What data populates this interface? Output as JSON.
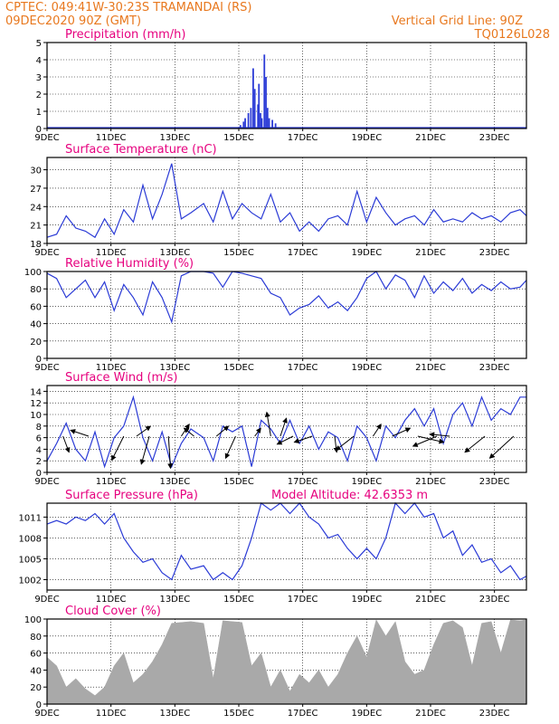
{
  "header": {
    "line1_left": "CPTEC:   049:41W-30:23S   TRAMANDAI (RS)",
    "line2_left": "09DEC2020 90Z (GMT)",
    "line1_right": "Vertical Grid Line: 90Z",
    "line2_right": "TQ0126L028"
  },
  "colors": {
    "header": "#e8781e",
    "title": "#e6007e",
    "series": "#2b3bd6",
    "cloud": "#a9a9a9",
    "arrow": "#000000"
  },
  "x_tick_labels": [
    "9DEC",
    "11DEC",
    "13DEC",
    "15DEC",
    "17DEC",
    "19DEC",
    "21DEC",
    "23DEC"
  ],
  "chart_data": [
    {
      "id": "precip",
      "type": "bar",
      "title": "Precipitation (mm/h)",
      "ylim": [
        0,
        5
      ],
      "yticks": [
        "0",
        "1",
        "2",
        "3",
        "4",
        "5"
      ],
      "x_range_days": [
        0,
        15
      ],
      "x": [
        6.05,
        6.15,
        6.2,
        6.3,
        6.38,
        6.45,
        6.5,
        6.6,
        6.63,
        6.68,
        6.72,
        6.8,
        6.85,
        6.9,
        6.95,
        7.05,
        7.15
      ],
      "values": [
        0.2,
        0.4,
        0.6,
        0.9,
        1.2,
        3.5,
        2.3,
        1.4,
        2.6,
        0.9,
        0.6,
        4.3,
        3.0,
        1.2,
        0.6,
        0.5,
        0.3
      ]
    },
    {
      "id": "temp",
      "type": "line",
      "title": "Surface Temperature (nC)",
      "ylim": [
        18,
        32
      ],
      "yticks": [
        "18",
        "21",
        "24",
        "27",
        "30"
      ],
      "x": [
        0,
        0.3,
        0.6,
        0.9,
        1.2,
        1.5,
        1.8,
        2.1,
        2.4,
        2.7,
        3.0,
        3.3,
        3.6,
        3.9,
        4.2,
        4.5,
        4.9,
        5.2,
        5.5,
        5.8,
        6.1,
        6.4,
        6.7,
        7.0,
        7.3,
        7.6,
        7.9,
        8.2,
        8.5,
        8.8,
        9.1,
        9.4,
        9.7,
        10.0,
        10.3,
        10.6,
        10.9,
        11.2,
        11.5,
        11.8,
        12.1,
        12.4,
        12.7,
        13.0,
        13.3,
        13.6,
        13.9,
        14.2,
        14.5,
        14.8,
        15.0
      ],
      "values": [
        19,
        19.5,
        22.5,
        20.5,
        20,
        19,
        22,
        19.5,
        23.5,
        21.5,
        27.5,
        22,
        26,
        31,
        22,
        23,
        24.5,
        21.5,
        26.5,
        22,
        24.5,
        23,
        22,
        26,
        21.5,
        23,
        20,
        21.5,
        20,
        22,
        22.5,
        21,
        26.5,
        21.5,
        25.5,
        23,
        21,
        22,
        22.5,
        21,
        23.5,
        21.5,
        22,
        21.5,
        23,
        22,
        22.5,
        21.5,
        23,
        23.5,
        22.5
      ]
    },
    {
      "id": "rh",
      "type": "line",
      "title": "Relative Humidity (%)",
      "ylim": [
        0,
        100
      ],
      "yticks": [
        "0",
        "20",
        "40",
        "60",
        "80",
        "100"
      ],
      "x": [
        0,
        0.3,
        0.6,
        0.9,
        1.2,
        1.5,
        1.8,
        2.1,
        2.4,
        2.7,
        3.0,
        3.3,
        3.6,
        3.9,
        4.2,
        4.5,
        4.9,
        5.2,
        5.5,
        5.8,
        6.1,
        6.4,
        6.7,
        7.0,
        7.3,
        7.6,
        7.9,
        8.2,
        8.5,
        8.8,
        9.1,
        9.4,
        9.7,
        10.0,
        10.3,
        10.6,
        10.9,
        11.2,
        11.5,
        11.8,
        12.1,
        12.4,
        12.7,
        13.0,
        13.3,
        13.6,
        13.9,
        14.2,
        14.5,
        14.8,
        15.0
      ],
      "values": [
        98,
        92,
        70,
        80,
        90,
        70,
        88,
        55,
        85,
        70,
        50,
        88,
        70,
        42,
        95,
        100,
        100,
        98,
        82,
        100,
        98,
        95,
        92,
        75,
        70,
        50,
        58,
        62,
        72,
        58,
        65,
        55,
        70,
        92,
        100,
        80,
        96,
        90,
        70,
        95,
        75,
        88,
        78,
        92,
        75,
        85,
        78,
        88,
        80,
        82,
        90
      ]
    },
    {
      "id": "wind",
      "type": "line",
      "title": "Surface Wind (m/s)",
      "ylim": [
        0,
        15
      ],
      "yticks": [
        "0",
        "2",
        "4",
        "6",
        "8",
        "10",
        "12",
        "14"
      ],
      "x": [
        0,
        0.3,
        0.6,
        0.9,
        1.2,
        1.5,
        1.8,
        2.1,
        2.4,
        2.7,
        3.0,
        3.3,
        3.6,
        3.9,
        4.2,
        4.5,
        4.9,
        5.2,
        5.5,
        5.8,
        6.1,
        6.4,
        6.7,
        7.0,
        7.3,
        7.6,
        7.9,
        8.2,
        8.5,
        8.8,
        9.1,
        9.4,
        9.7,
        10.0,
        10.3,
        10.6,
        10.9,
        11.2,
        11.5,
        11.8,
        12.1,
        12.4,
        12.7,
        13.0,
        13.3,
        13.6,
        13.9,
        14.2,
        14.5,
        14.8,
        15.0
      ],
      "values": [
        2,
        5,
        8.5,
        4,
        2,
        7,
        1,
        6,
        8,
        13,
        6,
        2,
        7,
        1,
        5,
        7.5,
        6,
        2,
        8,
        7,
        8,
        1,
        9,
        7.5,
        5,
        9,
        5,
        8,
        4,
        7,
        6,
        2,
        8,
        6,
        2,
        8,
        6,
        9,
        11,
        8,
        11,
        5,
        10,
        12,
        8,
        13,
        9,
        11,
        10,
        13,
        13
      ],
      "arrows": [
        {
          "x": 0.5,
          "u": 0.3,
          "v": -0.8
        },
        {
          "x": 1.3,
          "u": -0.9,
          "v": 0.3
        },
        {
          "x": 2.4,
          "u": -0.6,
          "v": -1.2
        },
        {
          "x": 2.8,
          "u": 0.7,
          "v": 0.5
        },
        {
          "x": 3.2,
          "u": -0.4,
          "v": -1.4
        },
        {
          "x": 3.8,
          "u": 0.1,
          "v": -1.6
        },
        {
          "x": 4.2,
          "u": 0.4,
          "v": 0.6
        },
        {
          "x": 4.6,
          "u": -0.5,
          "v": 0.4
        },
        {
          "x": 5.3,
          "u": 0.6,
          "v": 0.5
        },
        {
          "x": 5.9,
          "u": -0.5,
          "v": -1.1
        },
        {
          "x": 6.5,
          "u": 0.3,
          "v": 0.4
        },
        {
          "x": 7.0,
          "u": -0.2,
          "v": 1.2
        },
        {
          "x": 7.3,
          "u": 0.3,
          "v": 0.9
        },
        {
          "x": 7.7,
          "u": -0.8,
          "v": -0.4
        },
        {
          "x": 8.3,
          "u": -0.9,
          "v": -0.3
        },
        {
          "x": 9.0,
          "u": 0.1,
          "v": -0.8
        },
        {
          "x": 9.6,
          "u": -0.9,
          "v": -0.7
        },
        {
          "x": 10.2,
          "u": 0.4,
          "v": 0.6
        },
        {
          "x": 10.8,
          "u": 0.9,
          "v": 0.4
        },
        {
          "x": 11.6,
          "u": 1.3,
          "v": -0.3
        },
        {
          "x": 12.2,
          "u": -1.2,
          "v": -0.5
        },
        {
          "x": 12.6,
          "u": -1.0,
          "v": 0.1
        },
        {
          "x": 13.7,
          "u": -1.0,
          "v": -0.8
        },
        {
          "x": 14.6,
          "u": -1.2,
          "v": -1.1
        }
      ]
    },
    {
      "id": "press",
      "type": "line",
      "title": "Surface Pressure (hPa)",
      "annotation": "Model Altitude: 42.6353  m",
      "ylim": [
        1000.5,
        1013
      ],
      "yticks": [
        "1002",
        "1005",
        "1008",
        "1011"
      ],
      "x": [
        0,
        0.3,
        0.6,
        0.9,
        1.2,
        1.5,
        1.8,
        2.1,
        2.4,
        2.7,
        3.0,
        3.3,
        3.6,
        3.9,
        4.2,
        4.5,
        4.9,
        5.2,
        5.5,
        5.8,
        6.1,
        6.4,
        6.7,
        7.0,
        7.3,
        7.6,
        7.9,
        8.2,
        8.5,
        8.8,
        9.1,
        9.4,
        9.7,
        10.0,
        10.3,
        10.6,
        10.9,
        11.2,
        11.5,
        11.8,
        12.1,
        12.4,
        12.7,
        13.0,
        13.3,
        13.6,
        13.9,
        14.2,
        14.5,
        14.8,
        15.0
      ],
      "values": [
        1010,
        1010.5,
        1010,
        1011,
        1010.5,
        1011.5,
        1010,
        1011.5,
        1008,
        1006,
        1004.5,
        1005,
        1003,
        1002,
        1005.5,
        1003.5,
        1004,
        1002,
        1003,
        1002,
        1004,
        1008,
        1013,
        1012,
        1013,
        1011.5,
        1013,
        1011,
        1010,
        1008,
        1008.5,
        1006.5,
        1005,
        1006.5,
        1005,
        1008,
        1013,
        1011.5,
        1013,
        1011,
        1011.5,
        1008,
        1009,
        1005.5,
        1007,
        1004.5,
        1005,
        1003,
        1004,
        1002,
        1002.5
      ]
    },
    {
      "id": "cloud",
      "type": "area",
      "title": "Cloud Cover (%)",
      "ylim": [
        0,
        100
      ],
      "yticks": [
        "0",
        "20",
        "40",
        "60",
        "80",
        "100"
      ],
      "x": [
        0,
        0.3,
        0.6,
        0.9,
        1.2,
        1.5,
        1.8,
        2.1,
        2.4,
        2.7,
        3.0,
        3.3,
        3.6,
        3.9,
        4.2,
        4.5,
        4.9,
        5.2,
        5.5,
        5.8,
        6.1,
        6.4,
        6.7,
        7.0,
        7.3,
        7.6,
        7.9,
        8.2,
        8.5,
        8.8,
        9.1,
        9.4,
        9.7,
        10.0,
        10.3,
        10.6,
        10.9,
        11.2,
        11.5,
        11.8,
        12.1,
        12.4,
        12.7,
        13.0,
        13.3,
        13.6,
        13.9,
        14.2,
        14.5,
        14.8,
        15.0
      ],
      "values": [
        55,
        45,
        20,
        30,
        18,
        10,
        20,
        45,
        60,
        25,
        35,
        50,
        70,
        95,
        96,
        97,
        95,
        30,
        98,
        97,
        96,
        45,
        60,
        20,
        40,
        15,
        35,
        25,
        40,
        20,
        35,
        60,
        80,
        55,
        99,
        80,
        97,
        50,
        35,
        40,
        70,
        95,
        98,
        90,
        45,
        95,
        97,
        60,
        99,
        98,
        99
      ]
    }
  ]
}
